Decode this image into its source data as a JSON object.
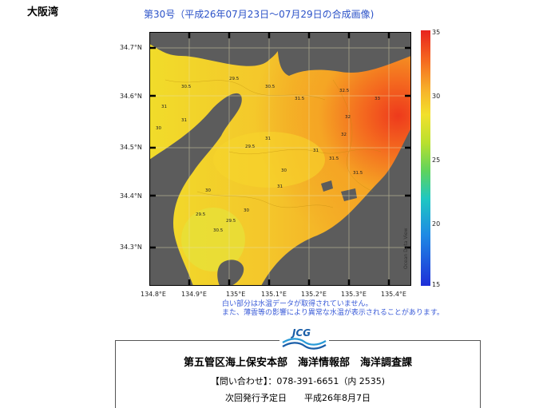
{
  "region_label": "大阪湾",
  "title": "第30号（平成26年07月23日～07月29日の合成画像)",
  "map": {
    "lat_labels": [
      "34.7°N",
      "34.6°N",
      "34.5°N",
      "34.4°N",
      "34.3°N"
    ],
    "lon_labels": [
      "134.8°E",
      "134.9°E",
      "135°E",
      "135.1°E",
      "135.2°E",
      "135.3°E",
      "135.4°E"
    ],
    "contour_labels": [
      "30.5",
      "30",
      "31",
      "31.5",
      "32",
      "32.5",
      "33",
      "29.5",
      "30.5",
      "31",
      "31",
      "31",
      "30",
      "29.5",
      "31.5",
      "30",
      "29.5",
      "30.5",
      "31",
      "30",
      "32",
      "31.5",
      "29.5"
    ]
  },
  "colorbar": {
    "ticks": [
      "35",
      "30",
      "25",
      "20",
      "15"
    ],
    "credit": "Ocean Data View",
    "colors": [
      "#e8231e",
      "#f7b52a",
      "#f2e02b",
      "#5fd35c",
      "#1fc7c2",
      "#1f2fd8"
    ]
  },
  "notes": [
    "白い部分は水温データが取得されていません。",
    "また、薄雲等の影響により異常な水温が表示されることがあります。"
  ],
  "logo_text": "JCG",
  "org": "第五管区海上保安本部　海洋情報部　海洋調査課",
  "contact": "【問い合わせ】：078-391-6651（内 2535)",
  "next_issue": "次回発行予定日　　平成26年8月7日"
}
